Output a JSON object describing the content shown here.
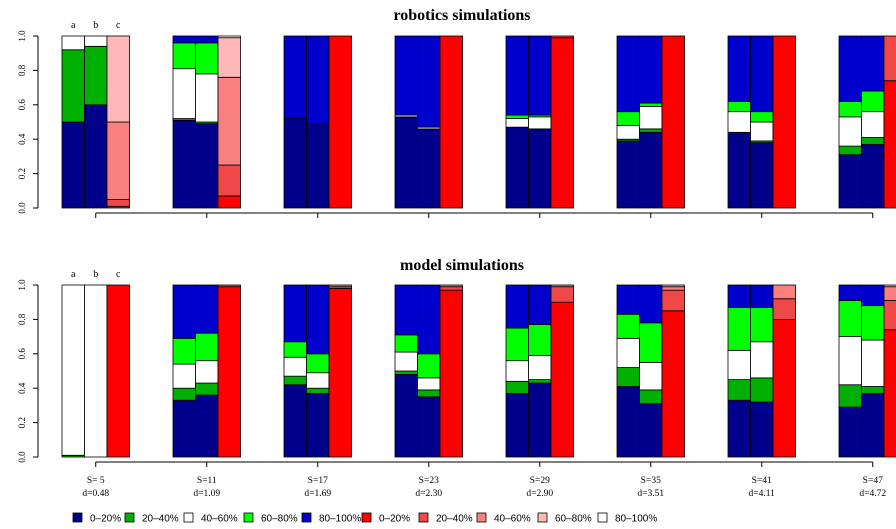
{
  "chart_data": [
    {
      "type": "bar",
      "stacked": true,
      "title": "robotics simulations",
      "ylim": [
        0,
        1
      ],
      "yticks": [
        "0.0",
        "0.2",
        "0.4",
        "0.6",
        "0.8",
        "1.0"
      ],
      "bar_labels": [
        "a",
        "b",
        "c"
      ],
      "groups": [
        {
          "bars": [
            {
              "kind": "blue",
              "segments": [
                0.5,
                0.42,
                0.08,
                0,
                0
              ]
            },
            {
              "kind": "blue",
              "segments": [
                0.6,
                0.34,
                0.06,
                0,
                0
              ]
            },
            {
              "kind": "red",
              "segments": [
                0.01,
                0.04,
                0.45,
                0.5,
                0
              ]
            }
          ]
        },
        {
          "bars": [
            {
              "kind": "blue",
              "segments": [
                0.51,
                0.01,
                0.29,
                0.15,
                0.04
              ]
            },
            {
              "kind": "blue",
              "segments": [
                0.49,
                0.01,
                0.28,
                0.18,
                0.04
              ]
            },
            {
              "kind": "red",
              "segments": [
                0.07,
                0.18,
                0.51,
                0.23,
                0.01
              ]
            }
          ]
        },
        {
          "bars": [
            {
              "kind": "blue",
              "segments": [
                0.52,
                0,
                0,
                0,
                0.48
              ]
            },
            {
              "kind": "blue",
              "segments": [
                0.49,
                0,
                0,
                0,
                0.51
              ]
            },
            {
              "kind": "red",
              "segments": [
                1.0,
                0,
                0,
                0,
                0
              ]
            }
          ]
        },
        {
          "bars": [
            {
              "kind": "blue",
              "segments": [
                0.53,
                0,
                0.01,
                0,
                0.46
              ]
            },
            {
              "kind": "blue",
              "segments": [
                0.46,
                0,
                0.01,
                0,
                0.53
              ]
            },
            {
              "kind": "red",
              "segments": [
                1.0,
                0,
                0,
                0,
                0
              ]
            }
          ]
        },
        {
          "bars": [
            {
              "kind": "blue",
              "segments": [
                0.47,
                0,
                0.05,
                0.02,
                0.46
              ]
            },
            {
              "kind": "blue",
              "segments": [
                0.46,
                0,
                0.07,
                0.01,
                0.46
              ]
            },
            {
              "kind": "red",
              "segments": [
                0.99,
                0.01,
                0,
                0,
                0
              ]
            }
          ]
        },
        {
          "bars": [
            {
              "kind": "blue",
              "segments": [
                0.39,
                0.01,
                0.08,
                0.08,
                0.44
              ]
            },
            {
              "kind": "blue",
              "segments": [
                0.44,
                0.02,
                0.13,
                0.02,
                0.39
              ]
            },
            {
              "kind": "red",
              "segments": [
                1.0,
                0,
                0,
                0,
                0
              ]
            }
          ]
        },
        {
          "bars": [
            {
              "kind": "blue",
              "segments": [
                0.44,
                0,
                0.12,
                0.06,
                0.38
              ]
            },
            {
              "kind": "blue",
              "segments": [
                0.38,
                0.01,
                0.11,
                0.06,
                0.44
              ]
            },
            {
              "kind": "red",
              "segments": [
                1.0,
                0,
                0,
                0,
                0
              ]
            }
          ]
        },
        {
          "bars": [
            {
              "kind": "blue",
              "segments": [
                0.31,
                0.05,
                0.17,
                0.09,
                0.38
              ]
            },
            {
              "kind": "blue",
              "segments": [
                0.37,
                0.04,
                0.15,
                0.12,
                0.32
              ]
            },
            {
              "kind": "red",
              "segments": [
                0.74,
                0.26,
                0,
                0,
                0
              ]
            }
          ]
        }
      ]
    },
    {
      "type": "bar",
      "stacked": true,
      "title": "model simulations",
      "ylim": [
        0,
        1
      ],
      "yticks": [
        "0.0",
        "0.2",
        "0.4",
        "0.6",
        "0.8",
        "1.0"
      ],
      "bar_labels": [
        "a",
        "b",
        "c"
      ],
      "groups": [
        {
          "bars": [
            {
              "kind": "blue",
              "segments": [
                0,
                0.01,
                0.99,
                0,
                0
              ]
            },
            {
              "kind": "blue",
              "segments": [
                0,
                0,
                1.0,
                0,
                0
              ]
            },
            {
              "kind": "red",
              "segments": [
                1.0,
                0,
                0,
                0,
                0
              ]
            }
          ]
        },
        {
          "bars": [
            {
              "kind": "blue",
              "segments": [
                0.33,
                0.07,
                0.14,
                0.15,
                0.31
              ]
            },
            {
              "kind": "blue",
              "segments": [
                0.36,
                0.07,
                0.13,
                0.16,
                0.28
              ]
            },
            {
              "kind": "red",
              "segments": [
                0.99,
                0.01,
                0,
                0,
                0
              ]
            }
          ]
        },
        {
          "bars": [
            {
              "kind": "blue",
              "segments": [
                0.42,
                0.05,
                0.11,
                0.09,
                0.33
              ]
            },
            {
              "kind": "blue",
              "segments": [
                0.37,
                0.03,
                0.09,
                0.11,
                0.4
              ]
            },
            {
              "kind": "red",
              "segments": [
                0.98,
                0.01,
                0.01,
                0,
                0
              ]
            }
          ]
        },
        {
          "bars": [
            {
              "kind": "blue",
              "segments": [
                0.48,
                0.02,
                0.11,
                0.1,
                0.29
              ]
            },
            {
              "kind": "blue",
              "segments": [
                0.35,
                0.04,
                0.07,
                0.14,
                0.4
              ]
            },
            {
              "kind": "red",
              "segments": [
                0.97,
                0.02,
                0.01,
                0,
                0
              ]
            }
          ]
        },
        {
          "bars": [
            {
              "kind": "blue",
              "segments": [
                0.37,
                0.07,
                0.12,
                0.19,
                0.25
              ]
            },
            {
              "kind": "blue",
              "segments": [
                0.43,
                0.02,
                0.14,
                0.18,
                0.23
              ]
            },
            {
              "kind": "red",
              "segments": [
                0.9,
                0.09,
                0.01,
                0,
                0
              ]
            }
          ]
        },
        {
          "bars": [
            {
              "kind": "blue",
              "segments": [
                0.41,
                0.11,
                0.17,
                0.14,
                0.17
              ]
            },
            {
              "kind": "blue",
              "segments": [
                0.31,
                0.08,
                0.16,
                0.23,
                0.22
              ]
            },
            {
              "kind": "red",
              "segments": [
                0.85,
                0.12,
                0.02,
                0.01,
                0
              ]
            }
          ]
        },
        {
          "bars": [
            {
              "kind": "blue",
              "segments": [
                0.33,
                0.12,
                0.17,
                0.25,
                0.13
              ]
            },
            {
              "kind": "blue",
              "segments": [
                0.32,
                0.14,
                0.21,
                0.2,
                0.13
              ]
            },
            {
              "kind": "red",
              "segments": [
                0.8,
                0.12,
                0.08,
                0,
                0
              ]
            }
          ]
        },
        {
          "bars": [
            {
              "kind": "blue",
              "segments": [
                0.29,
                0.13,
                0.28,
                0.21,
                0.09
              ]
            },
            {
              "kind": "blue",
              "segments": [
                0.37,
                0.04,
                0.27,
                0.2,
                0.12
              ]
            },
            {
              "kind": "red",
              "segments": [
                0.74,
                0.17,
                0.08,
                0.01,
                0
              ]
            }
          ]
        }
      ]
    }
  ],
  "group_labels": [
    {
      "s": "S= 5",
      "d": "d=0.48"
    },
    {
      "s": "S=11",
      "d": "d=1.09"
    },
    {
      "s": "S=17",
      "d": "d=1.69"
    },
    {
      "s": "S=23",
      "d": "d=2.30"
    },
    {
      "s": "S=29",
      "d": "d=2.90"
    },
    {
      "s": "S=35",
      "d": "d=3.51"
    },
    {
      "s": "S=41",
      "d": "d=4.11"
    },
    {
      "s": "S=47",
      "d": "d=4.72"
    }
  ],
  "legend": [
    {
      "label": "0–20%",
      "color": "#00008b"
    },
    {
      "label": "20–40%",
      "color": "#00b000"
    },
    {
      "label": "40–60%",
      "color": "#ffffff"
    },
    {
      "label": "60–80%",
      "color": "#00ff00"
    },
    {
      "label": "80–100%",
      "color": "#0000cd"
    },
    {
      "label": "0–20%",
      "color": "#ff0000"
    },
    {
      "label": "20–40%",
      "color": "#f04848"
    },
    {
      "label": "40–60%",
      "color": "#fa8080"
    },
    {
      "label": "60–80%",
      "color": "#ffb8b8"
    },
    {
      "label": "80–100%",
      "color": "#ffffff"
    }
  ],
  "colors": {
    "blue": [
      "#00008b",
      "#00b000",
      "#ffffff",
      "#00ff00",
      "#0000cd"
    ],
    "red": [
      "#ff0000",
      "#f04848",
      "#fa8080",
      "#ffb8b8",
      "#ffffff"
    ]
  }
}
